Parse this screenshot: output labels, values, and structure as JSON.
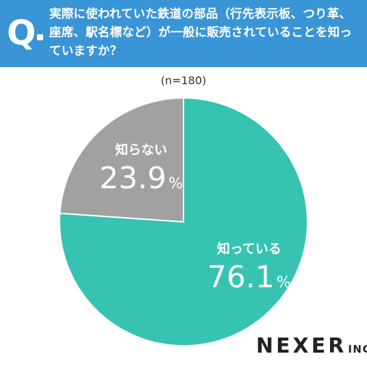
{
  "question": {
    "mark": "Q",
    "text": "実際に使われていた鉄道の部品（行先表示板、つり革、座席、駅名標など）が一般に販売されていることを知っていますか？"
  },
  "sample_size": "(n=180)",
  "chart_data": {
    "type": "pie",
    "title": "",
    "slices": [
      {
        "label": "知っている",
        "value": 76.1,
        "display": "76.1",
        "unit": "%",
        "color": "#36c3b1"
      },
      {
        "label": "知らない",
        "value": 23.9,
        "display": "23.9",
        "unit": "%",
        "color": "#a1a1a1"
      }
    ]
  },
  "logo": {
    "main": "NEXER",
    "sub": "INC."
  }
}
